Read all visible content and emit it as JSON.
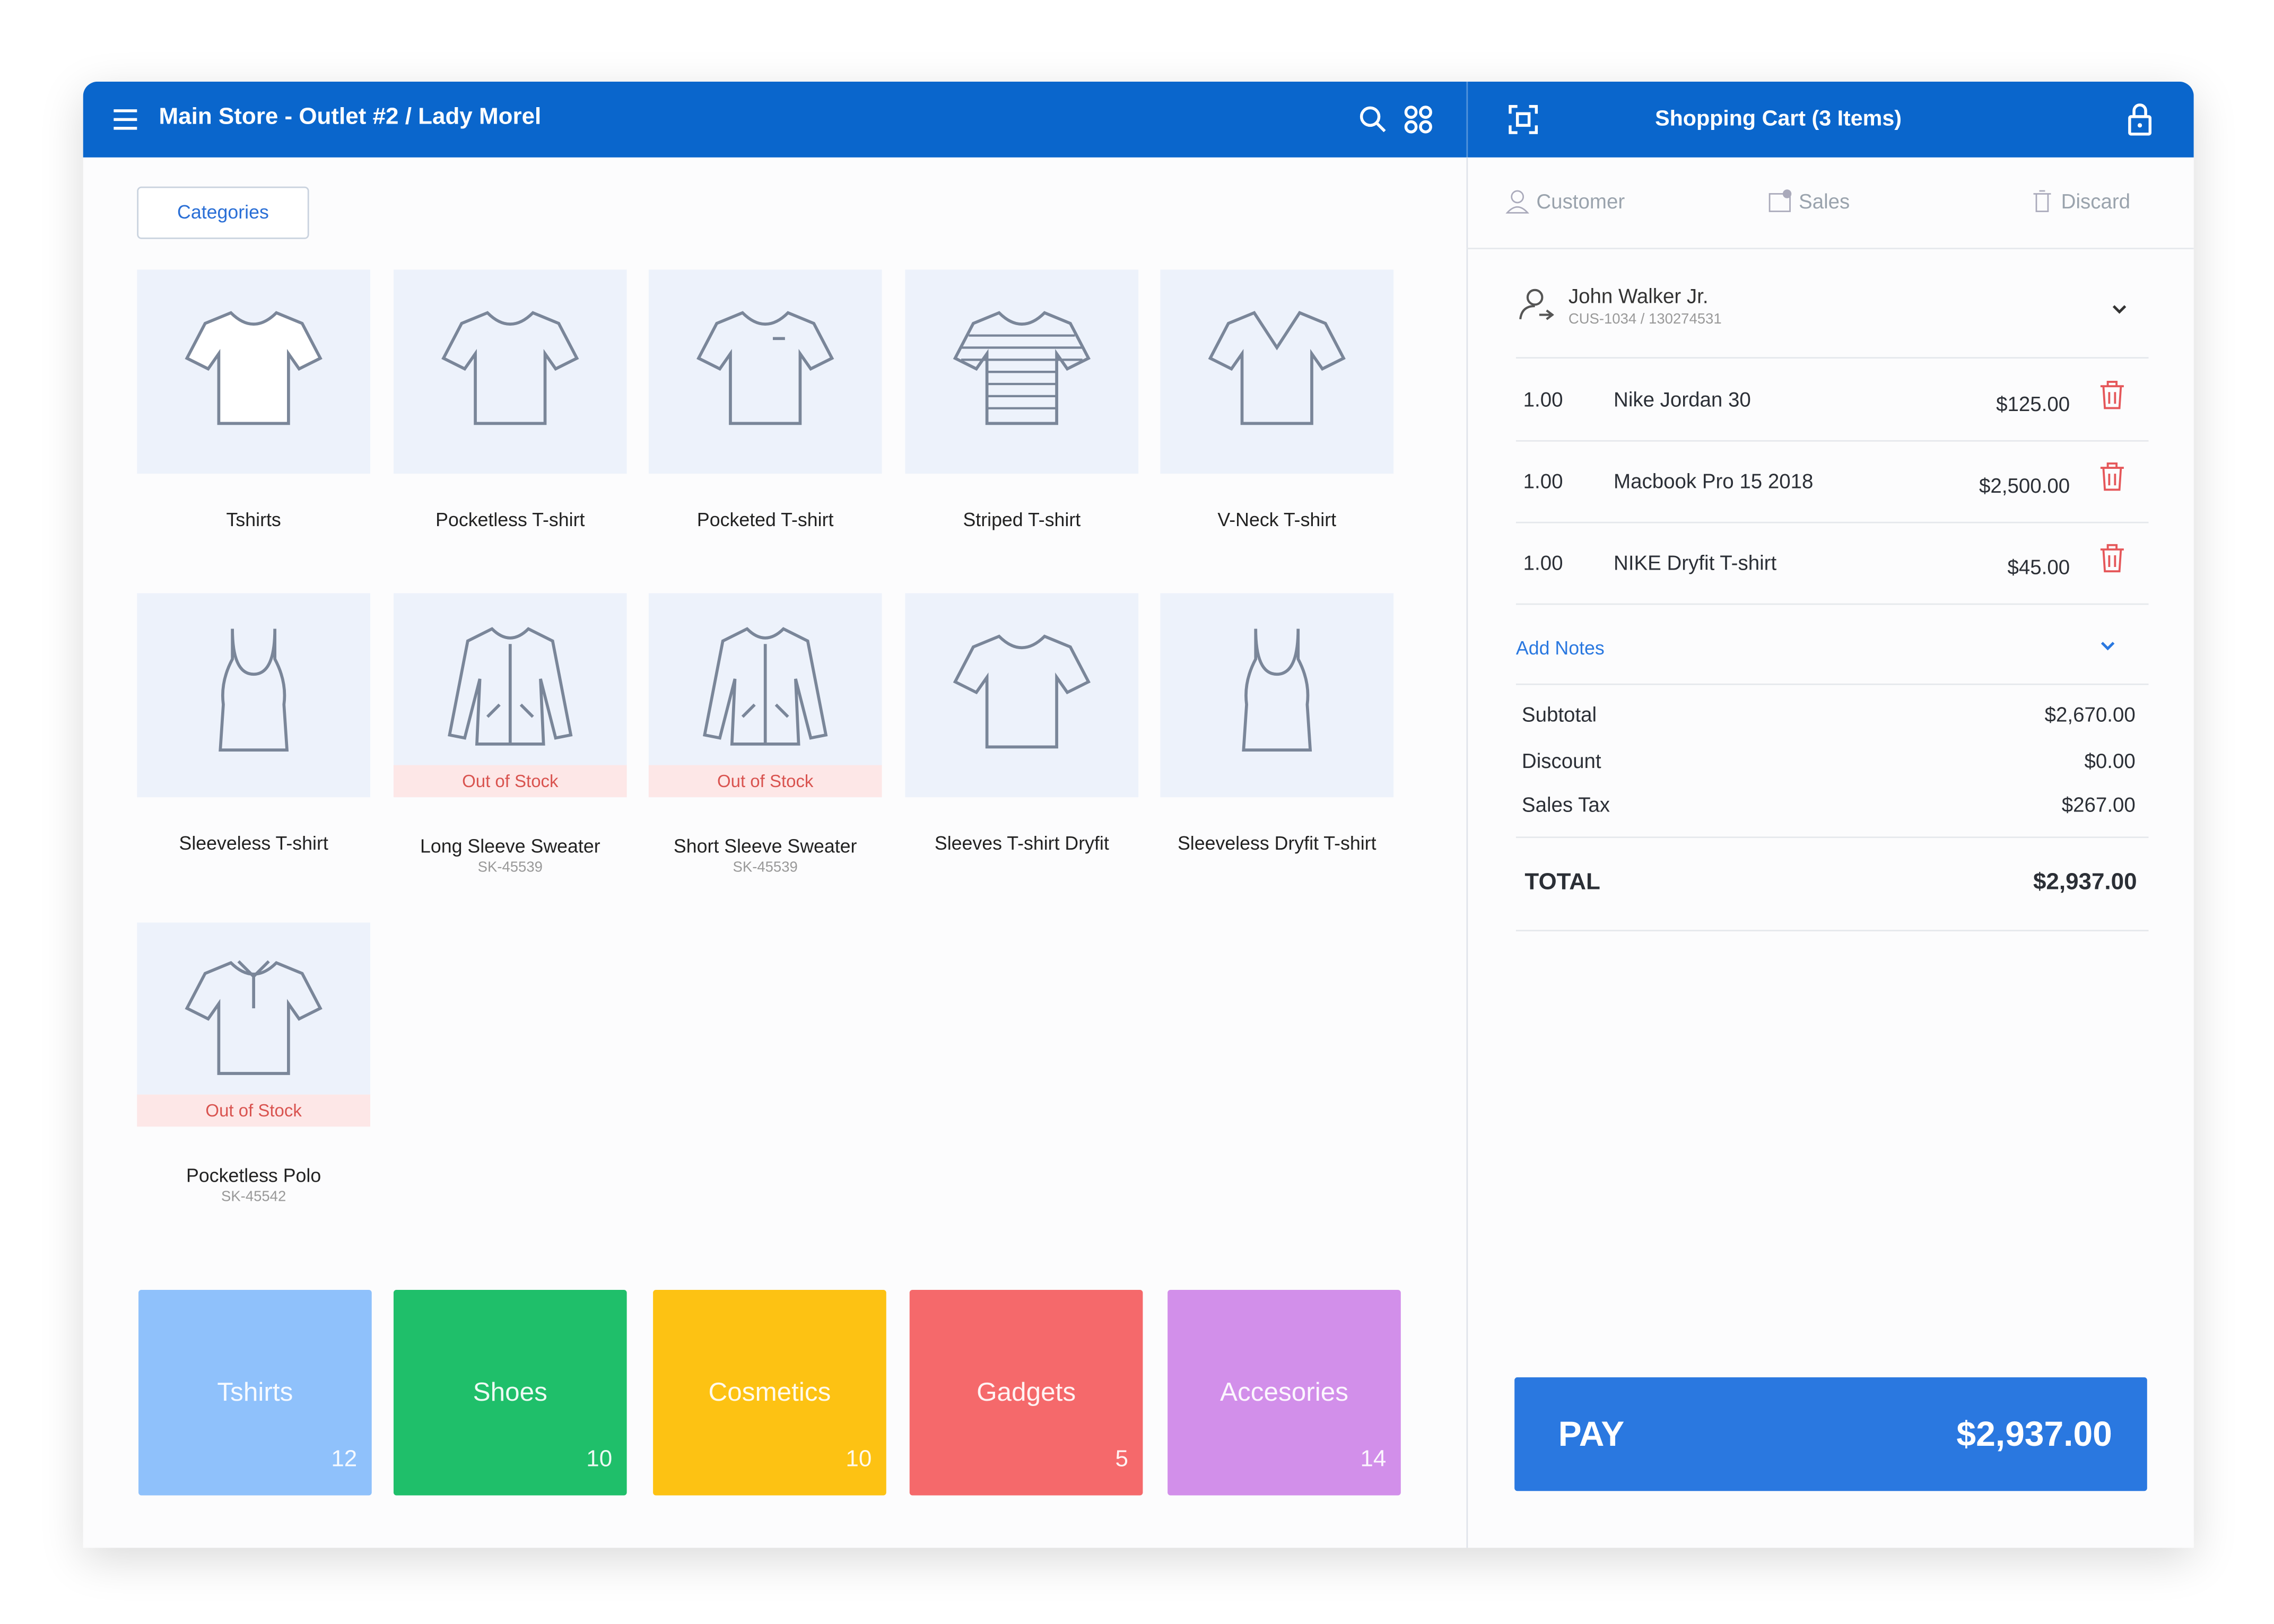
{
  "header": {
    "store_title": "Main Store - Outlet #2 / Lady Morel",
    "cart_title": "Shopping Cart (3 Items)"
  },
  "categories_button": "Categories",
  "products": [
    {
      "name": "Tshirts"
    },
    {
      "name": "Pocketless T-shirt"
    },
    {
      "name": "Pocketed T-shirt"
    },
    {
      "name": "Striped T-shirt"
    },
    {
      "name": "V-Neck T-shirt"
    },
    {
      "name": "Sleeveless T-shirt"
    },
    {
      "name": "Long Sleeve Sweater",
      "sku": "SK-45539",
      "status": "Out of Stock"
    },
    {
      "name": "Short Sleeve Sweater",
      "sku": "SK-45539",
      "status": "Out of Stock"
    },
    {
      "name": "Sleeves T-shirt Dryfit"
    },
    {
      "name": "Sleeveless Dryfit T-shirt"
    },
    {
      "name": "Pocketless Polo",
      "sku": "SK-45542",
      "status": "Out of Stock"
    }
  ],
  "category_tiles": [
    {
      "name": "Tshirts",
      "count": 12,
      "color": "#8fc1fb"
    },
    {
      "name": "Shoes",
      "count": 10,
      "color": "#1fbf6a"
    },
    {
      "name": "Cosmetics",
      "count": 10,
      "color": "#fdc213"
    },
    {
      "name": "Gadgets",
      "count": 5,
      "color": "#f5696b"
    },
    {
      "name": "Accesories",
      "count": 14,
      "color": "#d28fea"
    }
  ],
  "cart": {
    "tabs": [
      "Customer",
      "Sales",
      "Discard"
    ],
    "customer": {
      "name": "John Walker Jr.",
      "id": "CUS-1034 / 130274531"
    },
    "items": [
      {
        "qty": "1.00",
        "name": "Nike Jordan 30",
        "price": "$125.00"
      },
      {
        "qty": "1.00",
        "name": "Macbook Pro 15 2018",
        "price": "$2,500.00"
      },
      {
        "qty": "1.00",
        "name": "NIKE Dryfit T-shirt",
        "price": "$45.00"
      }
    ],
    "add_notes": "Add Notes",
    "summary": [
      {
        "label": "Subtotal",
        "value": "$2,670.00"
      },
      {
        "label": "Discount",
        "value": "$0.00"
      },
      {
        "label": "Sales Tax",
        "value": "$267.00"
      }
    ],
    "total": {
      "label": "TOTAL",
      "value": "$2,937.00"
    },
    "pay": {
      "label": "PAY",
      "amount": "$2,937.00"
    }
  }
}
